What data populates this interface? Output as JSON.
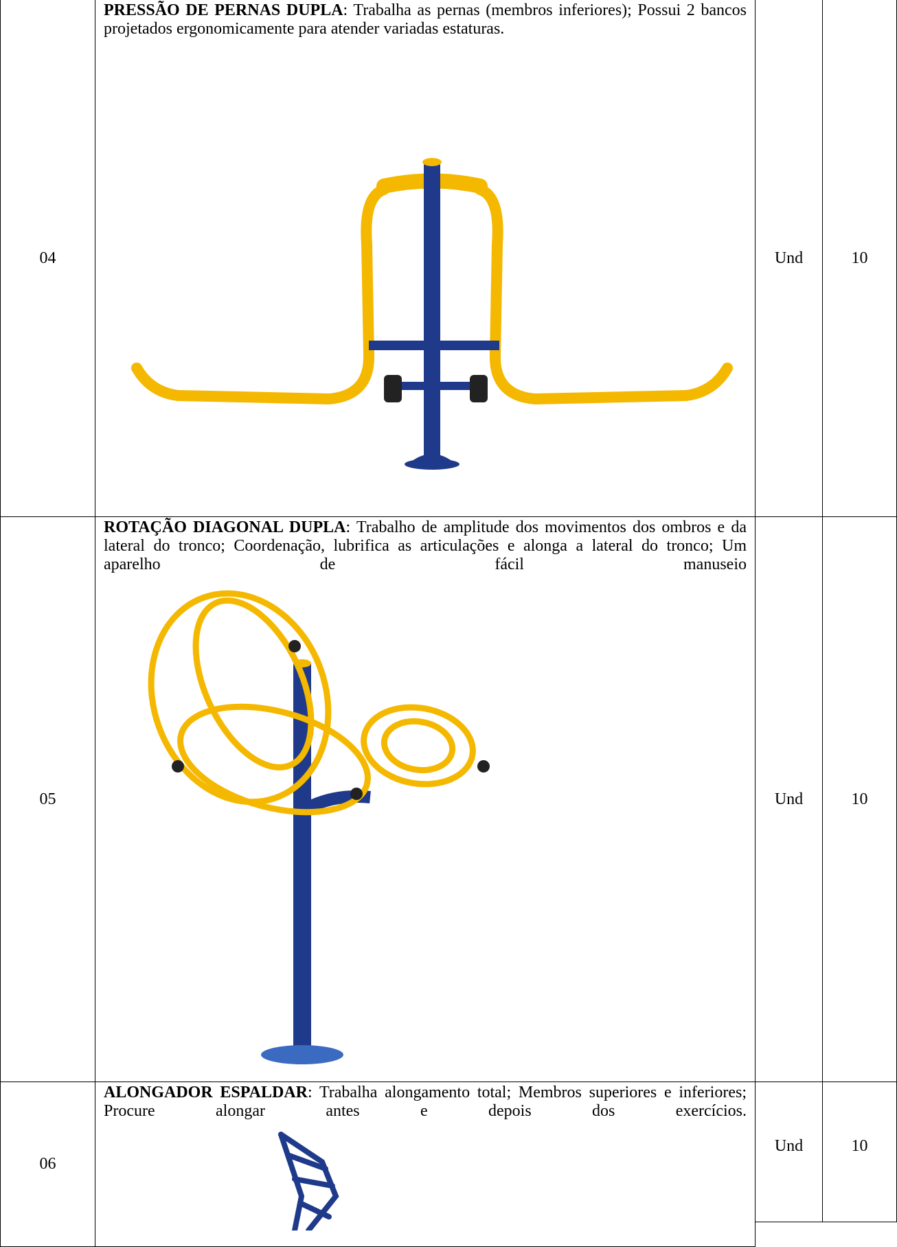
{
  "table": {
    "rows": [
      {
        "number": "04",
        "title": "PRESSÃO DE PERNAS DUPLA",
        "description": ": Trabalha as pernas (membros inferiores); Possui 2 bancos projetados ergonomicamente para atender variadas estaturas.",
        "unit": "Und",
        "quantity": "10"
      },
      {
        "number": "05",
        "title": "ROTAÇÃO DIAGONAL DUPLA",
        "description": ": Trabalho de amplitude dos movimentos dos ombros e da lateral do tronco; Coordenação, lubrifica as articulações e alonga a lateral do tronco; Um aparelho de fácil manuseio",
        "unit": "Und",
        "quantity": "10"
      },
      {
        "number": "06",
        "title": "ALONGADOR ESPALDAR",
        "description": ": Trabalha alongamento total; Membros superiores e inferiores; Procure alongar antes e depois dos exercícios.",
        "unit": "Und",
        "quantity": "10"
      }
    ]
  }
}
